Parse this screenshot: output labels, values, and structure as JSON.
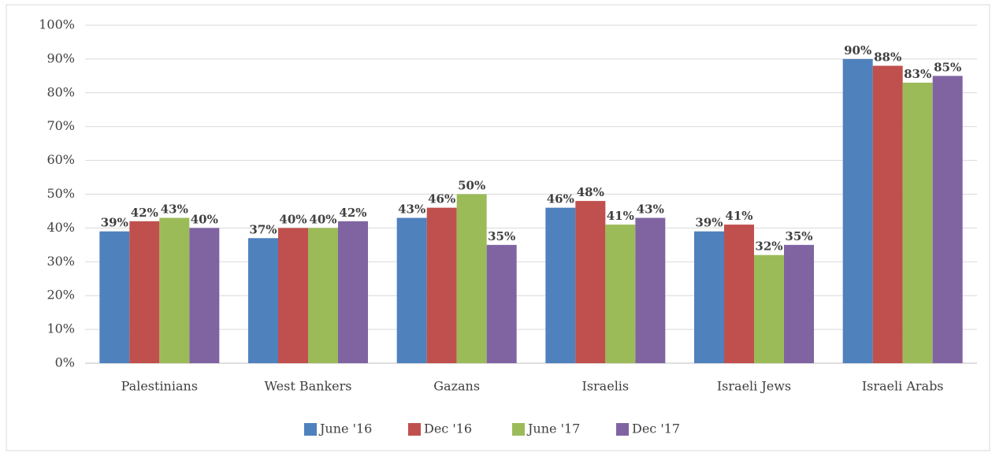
{
  "chart_data": {
    "type": "bar",
    "categories": [
      "Palestinians",
      "West Bankers",
      "Gazans",
      "Israelis",
      "Israeli Jews",
      "Israeli Arabs"
    ],
    "series": [
      {
        "name": "June '16",
        "color": "#4f81bd",
        "values": [
          39,
          37,
          43,
          46,
          39,
          90
        ],
        "value_labels": [
          "39%",
          "37%",
          "43%",
          "46%",
          "39%",
          "90%"
        ]
      },
      {
        "name": "Dec '16",
        "color": "#c0504d",
        "values": [
          42,
          40,
          46,
          48,
          41,
          88
        ],
        "value_labels": [
          "42%",
          "40%",
          "46%",
          "48%",
          "41%",
          "88%"
        ]
      },
      {
        "name": "June '17",
        "color": "#9bbb59",
        "values": [
          43,
          40,
          50,
          41,
          32,
          83
        ],
        "value_labels": [
          "43%",
          "40%",
          "50%",
          "41%",
          "32%",
          "83%"
        ]
      },
      {
        "name": "Dec '17",
        "color": "#8064a2",
        "values": [
          40,
          42,
          35,
          43,
          35,
          85
        ],
        "value_labels": [
          "40%",
          "42%",
          "35%",
          "43%",
          "35%",
          "85%"
        ]
      }
    ],
    "ylim": [
      0,
      100
    ],
    "yticks": [
      {
        "value": 0,
        "label": "0%"
      },
      {
        "value": 10,
        "label": "10%"
      },
      {
        "value": 20,
        "label": "20%"
      },
      {
        "value": 30,
        "label": "30%"
      },
      {
        "value": 40,
        "label": "40%"
      },
      {
        "value": 50,
        "label": "50%"
      },
      {
        "value": 60,
        "label": "60%"
      },
      {
        "value": 70,
        "label": "70%"
      },
      {
        "value": 80,
        "label": "80%"
      },
      {
        "value": 90,
        "label": "90%"
      },
      {
        "value": 100,
        "label": "100%"
      }
    ],
    "grid": true,
    "legend": "bottom"
  }
}
